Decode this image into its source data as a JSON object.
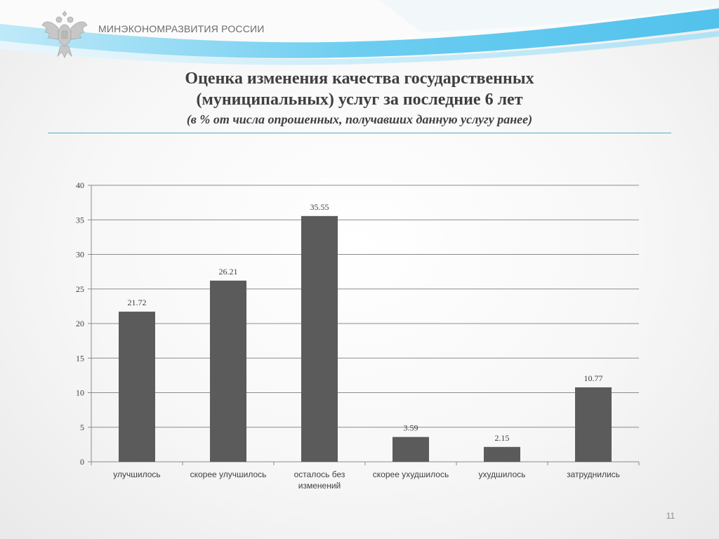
{
  "header": {
    "ministry_name": "МИНЭКОНОМРАЗВИТИЯ РОССИИ",
    "emblem_icon": "double-headed-eagle-emblem"
  },
  "slide": {
    "title_line1": "Оценка изменения качества государственных",
    "title_line2": "(муниципальных) услуг  за последние 6 лет",
    "subtitle": "(в % от числа опрошенных, получавших данную услугу ранее)",
    "page_number": "11"
  },
  "colors": {
    "bar": "#5b5b5b",
    "grid": "#8c8c8c",
    "text": "#3f3f3f",
    "accent_blue": "#5cc8ee"
  },
  "chart_data": {
    "type": "bar",
    "categories": [
      [
        "улучшилось"
      ],
      [
        "скорее улучшилось"
      ],
      [
        "осталось без",
        "изменений"
      ],
      [
        "скорее ухудшилось"
      ],
      [
        "ухудшилось"
      ],
      [
        "затруднились"
      ]
    ],
    "values": [
      21.72,
      26.21,
      35.55,
      3.59,
      2.15,
      10.77
    ],
    "ylim": [
      0,
      40
    ],
    "yticks": [
      0,
      5,
      10,
      15,
      20,
      25,
      30,
      35,
      40
    ],
    "grid": true,
    "legend": "none",
    "xlabel": "",
    "ylabel": ""
  }
}
